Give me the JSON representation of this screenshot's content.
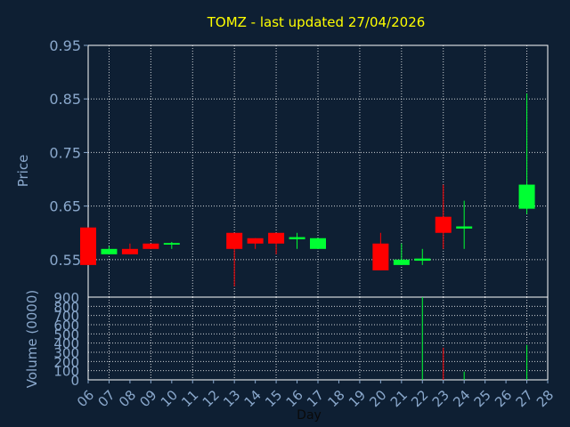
{
  "chart_data": {
    "type": "candlestick",
    "title": "TOMZ - last updated 27/04/2026",
    "colors": {
      "background": "#0e1f33",
      "title": "#ffff00",
      "axis_text": "#8aa8cc",
      "grid": "#ffffff",
      "up": "#00ff33",
      "down": "#ff0000"
    },
    "price_panel": {
      "ylabel": "Price",
      "ylim": [
        0.48,
        0.95
      ],
      "yticks": [
        "0.95",
        "0.85",
        "0.75",
        "0.65",
        "0.55"
      ],
      "grid": true
    },
    "volume_panel": {
      "ylabel": "Volume (0000)",
      "ylim": [
        0,
        900
      ],
      "yticks": [
        "900",
        "800",
        "700",
        "600",
        "500",
        "400",
        "300",
        "200",
        "100",
        "0"
      ],
      "grid": true
    },
    "xlabel": "Day",
    "xlim": [
      6,
      28
    ],
    "xticks": [
      "06",
      "07",
      "08",
      "09",
      "10",
      "11",
      "12",
      "13",
      "14",
      "15",
      "16",
      "17",
      "18",
      "19",
      "20",
      "21",
      "22",
      "23",
      "24",
      "25",
      "26",
      "27",
      "28"
    ],
    "candles": [
      {
        "day": 6,
        "open": 0.61,
        "high": 0.61,
        "low": 0.54,
        "close": 0.54
      },
      {
        "day": 7,
        "open": 0.56,
        "high": 0.575,
        "low": 0.56,
        "close": 0.57
      },
      {
        "day": 8,
        "open": 0.57,
        "high": 0.58,
        "low": 0.56,
        "close": 0.56
      },
      {
        "day": 9,
        "open": 0.58,
        "high": 0.58,
        "low": 0.57,
        "close": 0.57
      },
      {
        "day": 10,
        "open": 0.578,
        "high": 0.583,
        "low": 0.57,
        "close": 0.581
      },
      {
        "day": 13,
        "open": 0.6,
        "high": 0.6,
        "low": 0.5,
        "close": 0.57
      },
      {
        "day": 14,
        "open": 0.59,
        "high": 0.59,
        "low": 0.57,
        "close": 0.58
      },
      {
        "day": 15,
        "open": 0.6,
        "high": 0.6,
        "low": 0.56,
        "close": 0.58
      },
      {
        "day": 16,
        "open": 0.588,
        "high": 0.6,
        "low": 0.57,
        "close": 0.592
      },
      {
        "day": 17,
        "open": 0.57,
        "high": 0.59,
        "low": 0.57,
        "close": 0.59
      },
      {
        "day": 20,
        "open": 0.58,
        "high": 0.6,
        "low": 0.53,
        "close": 0.53
      },
      {
        "day": 21,
        "open": 0.54,
        "high": 0.58,
        "low": 0.54,
        "close": 0.55
      },
      {
        "day": 22,
        "open": 0.548,
        "high": 0.57,
        "low": 0.54,
        "close": 0.552
      },
      {
        "day": 23,
        "open": 0.63,
        "high": 0.69,
        "low": 0.57,
        "close": 0.6
      },
      {
        "day": 24,
        "open": 0.608,
        "high": 0.66,
        "low": 0.57,
        "close": 0.612
      },
      {
        "day": 27,
        "open": 0.645,
        "high": 0.86,
        "low": 0.635,
        "close": 0.69
      }
    ],
    "volumes": [
      {
        "day": 22,
        "value": 900,
        "color": "up"
      },
      {
        "day": 23,
        "value": 350,
        "color": "down"
      },
      {
        "day": 24,
        "value": 90,
        "color": "up"
      },
      {
        "day": 27,
        "value": 380,
        "color": "up"
      }
    ]
  }
}
